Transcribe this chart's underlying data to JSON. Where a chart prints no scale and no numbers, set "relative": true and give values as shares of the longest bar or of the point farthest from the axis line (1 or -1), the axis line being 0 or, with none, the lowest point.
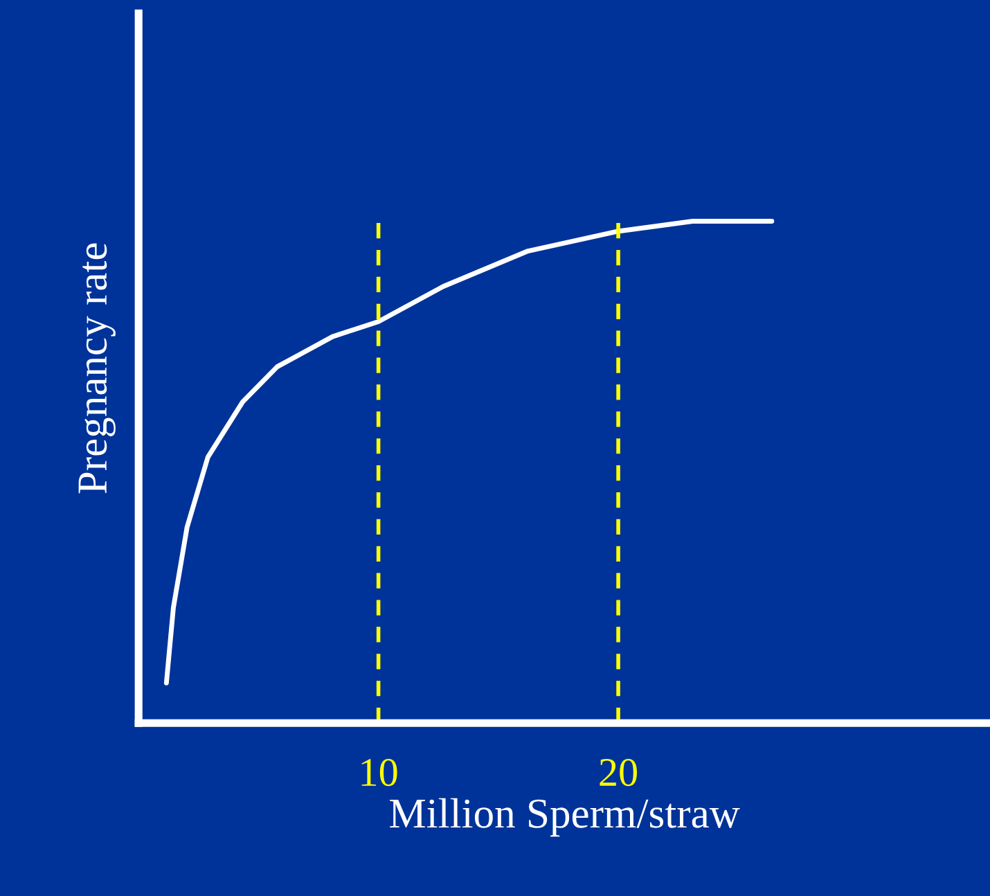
{
  "chart_data": {
    "type": "line",
    "xlabel": "Million Sperm/straw",
    "ylabel": "Pregnancy rate",
    "relative": true,
    "tick_labels": "x",
    "xlim": [
      0,
      35.5
    ],
    "xticks": [
      10,
      20
    ],
    "series": [
      {
        "color": "#ffffff",
        "x": [
          1.16,
          1.45,
          2.02,
          2.89,
          4.34,
          5.78,
          8.09,
          10,
          12.7,
          16.2,
          20,
          23.1,
          26.4
        ],
        "values": [
          0.08,
          0.23,
          0.39,
          0.53,
          0.64,
          0.71,
          0.77,
          0.8,
          0.87,
          0.94,
          0.98,
          1.0,
          1.0
        ]
      }
    ],
    "ref_lines": [
      {
        "axis": "x",
        "value": 10,
        "color": "#ffff00",
        "line_style": "dashed"
      },
      {
        "axis": "x",
        "value": 20,
        "color": "#ffff00",
        "line_style": "dashed"
      }
    ]
  }
}
